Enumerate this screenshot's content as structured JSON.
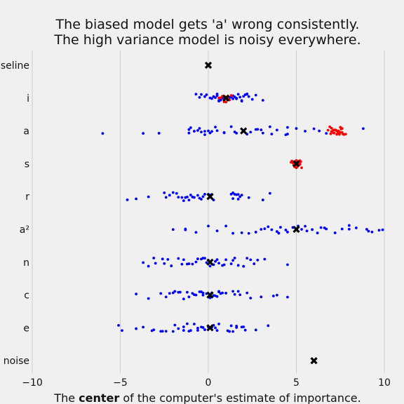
{
  "chart_data": {
    "type": "scatter",
    "title_lines": [
      "The biased model gets 'a' wrong consistently.",
      "The high variance model is noisy everywhere."
    ],
    "xlabel": {
      "prefix": "The ",
      "bold": "center",
      "suffix": " of the computer's estimate of importance."
    },
    "xlim": [
      -10,
      10
    ],
    "xticks": [
      -10,
      -5,
      0,
      5,
      10
    ],
    "grid": "vertical",
    "categories": [
      "baseline",
      "i",
      "a",
      "s",
      "r",
      "a²",
      "n",
      "c",
      "e",
      "noise"
    ],
    "colors": {
      "high_variance": "#0000ff",
      "biased": "#ff0000",
      "center": "#000000",
      "grid": "#cbcbcb",
      "background": "#f0f0f0"
    },
    "series": [
      {
        "key": "high_variance",
        "values": [
          [],
          [
            -0.2,
            -0.1,
            0.1,
            0.3,
            0.4,
            0.5,
            0.6,
            0.6,
            0.7,
            0.8,
            0.8,
            0.9,
            1.0,
            1.1,
            1.2,
            1.3,
            1.4,
            1.5,
            1.6,
            1.7,
            1.8,
            1.9,
            2.0,
            2.1,
            2.2,
            2.3,
            2.5,
            3.1,
            -0.7,
            -0.4,
            0.2,
            0.5,
            1.0,
            1.6,
            2.2,
            -0.5,
            0.7,
            1.4,
            1.9,
            2.7,
            0.9,
            1.2
          ],
          [
            -6.0,
            -3.7,
            -2.8,
            -1.1,
            -1.0,
            -0.8,
            -0.6,
            -0.4,
            -0.2,
            0.0,
            0.2,
            0.5,
            0.9,
            1.3,
            1.6,
            2.2,
            2.8,
            3.1,
            3.6,
            3.9,
            4.4,
            4.5,
            5.0,
            5.5,
            6.3,
            6.7,
            8.8,
            -1.1,
            -0.5,
            0.1,
            0.9,
            1.5,
            2.7,
            3.0,
            4.5,
            6.0,
            -0.2,
            0.4,
            2.4,
            3.5
          ],
          [],
          [
            -4.6,
            -4.1,
            -3.4,
            -2.5,
            -2.2,
            -2.0,
            -1.7,
            -1.4,
            -1.3,
            -1.2,
            -1.1,
            -1.0,
            -0.8,
            -0.6,
            -0.4,
            -0.2,
            0.0,
            0.1,
            0.3,
            1.3,
            1.4,
            1.5,
            1.6,
            1.7,
            1.8,
            1.9,
            2.3,
            3.1,
            3.5,
            -1.5,
            -0.9,
            -0.3,
            1.4,
            1.7,
            -2.4,
            -1.8,
            -0.5,
            0.2
          ],
          [
            -2.0,
            -1.3,
            -0.7,
            0.0,
            0.5,
            1.0,
            1.9,
            2.3,
            2.7,
            3.0,
            3.2,
            3.6,
            3.9,
            4.0,
            4.1,
            4.5,
            4.8,
            5.1,
            5.5,
            5.6,
            5.9,
            6.2,
            6.4,
            6.7,
            7.2,
            7.6,
            8.0,
            8.4,
            9.0,
            9.3,
            9.7,
            9.9,
            3.4,
            5.3,
            6.6,
            8.0,
            9.1,
            -1.3,
            1.4,
            4.4
          ],
          [
            -3.7,
            -3.4,
            -3.0,
            -2.5,
            -2.1,
            -1.7,
            -1.4,
            -1.1,
            -0.9,
            -0.6,
            -0.4,
            -0.2,
            0.0,
            0.1,
            0.3,
            0.6,
            0.8,
            1.0,
            1.3,
            1.7,
            2.0,
            2.2,
            2.6,
            3.2,
            4.5,
            -3.1,
            -2.3,
            -1.5,
            -0.7,
            -0.1,
            0.4,
            0.9,
            1.5,
            2.4,
            2.8,
            -2.6,
            -1.2,
            0.5,
            1.4,
            -0.3
          ],
          [
            -4.1,
            -3.4,
            -2.4,
            -2.2,
            -1.9,
            -1.7,
            -1.4,
            -1.2,
            -0.9,
            -0.7,
            -0.5,
            -0.3,
            -0.1,
            0.1,
            0.3,
            0.4,
            0.5,
            0.6,
            0.8,
            1.0,
            1.5,
            1.8,
            2.2,
            3.0,
            3.7,
            3.9,
            4.5,
            -2.0,
            -1.1,
            -0.3,
            0.6,
            1.4,
            -1.6,
            -0.4,
            0.2,
            0.7,
            1.7,
            -2.7,
            2.4,
            -0.8
          ],
          [
            -5.1,
            -4.9,
            -4.1,
            -3.7,
            -3.1,
            -2.7,
            -2.4,
            -2.0,
            -1.7,
            -1.4,
            -1.2,
            -1.0,
            -0.8,
            -0.6,
            -0.4,
            -0.2,
            0.0,
            0.2,
            0.4,
            0.5,
            1.1,
            1.2,
            1.4,
            1.6,
            1.9,
            2.1,
            2.7,
            3.4,
            -3.2,
            -1.9,
            -1.1,
            -0.3,
            0.3,
            1.3,
            2.0,
            -1.4,
            -0.6,
            0.6,
            1.6,
            -2.6
          ],
          []
        ]
      },
      {
        "key": "biased",
        "values": [
          [],
          [
            0.6,
            0.7,
            0.8,
            0.9,
            1.0,
            1.1,
            1.2,
            1.3,
            0.9,
            1.0,
            1.05
          ],
          [
            6.8,
            6.9,
            7.0,
            7.1,
            7.2,
            7.3,
            7.35,
            7.4,
            7.5,
            7.6,
            7.7,
            7.8,
            7.0,
            7.2,
            7.4,
            7.6,
            7.1,
            7.3,
            7.5,
            6.95,
            7.25,
            7.45,
            7.65,
            7.15,
            7.55
          ],
          [
            4.7,
            4.8,
            4.85,
            4.9,
            4.95,
            5.0,
            5.05,
            5.1,
            5.15,
            5.2,
            5.25,
            5.3,
            4.75,
            4.9,
            5.0,
            5.1,
            5.2,
            4.8,
            5.0,
            5.2,
            4.95,
            5.05
          ],
          [],
          [],
          [],
          [],
          [],
          []
        ]
      }
    ],
    "centers": [
      0.0,
      1.0,
      2.0,
      5.0,
      0.1,
      5.0,
      0.1,
      0.1,
      0.1,
      6.0
    ]
  }
}
